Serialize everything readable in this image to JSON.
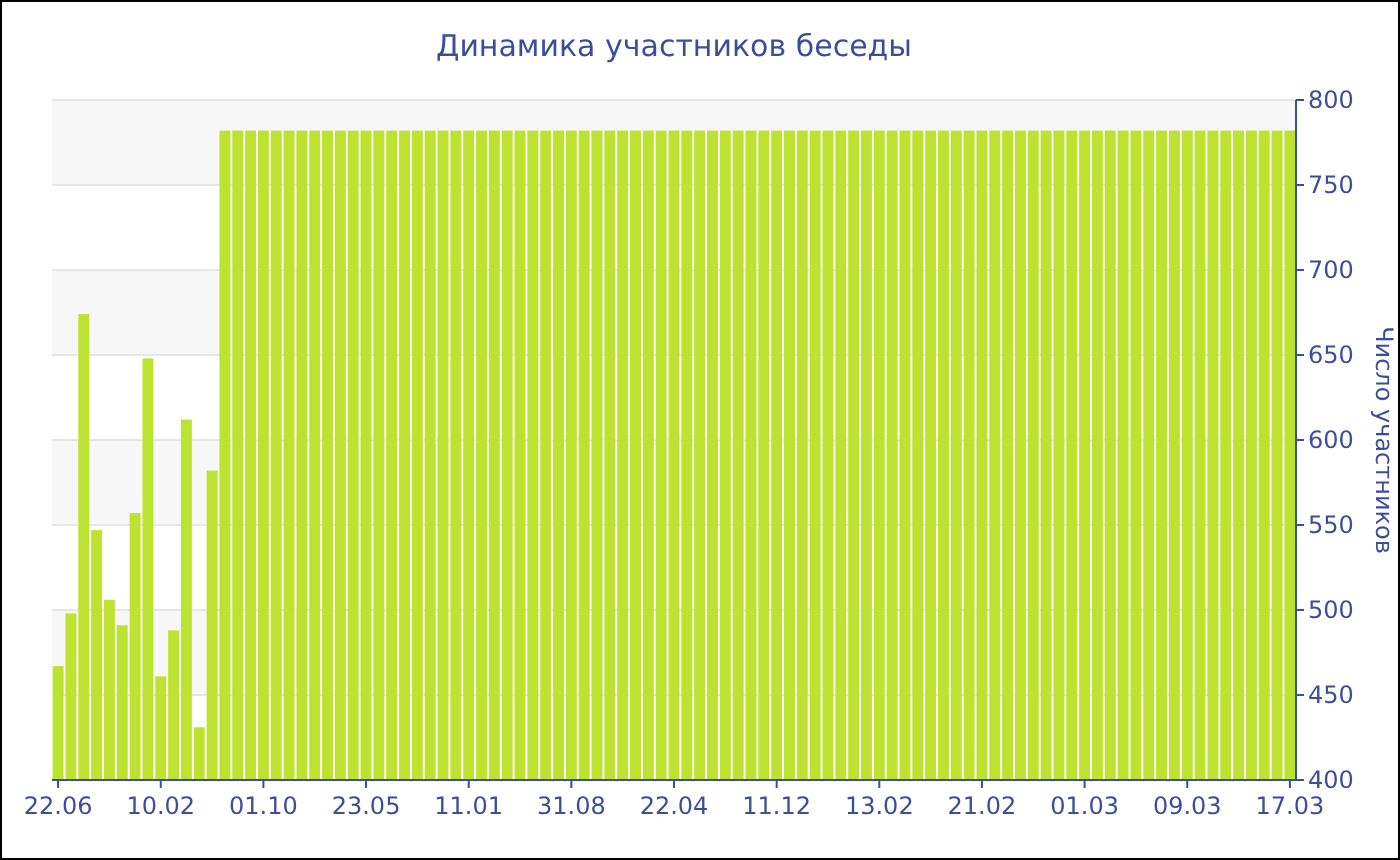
{
  "chart_data": {
    "type": "bar",
    "title": "Динамика участников беседы",
    "ylabel": "Число участников",
    "categories": [
      "22.06",
      null,
      null,
      null,
      null,
      null,
      null,
      null,
      "10.02",
      null,
      null,
      null,
      null,
      null,
      null,
      null,
      "01.10",
      null,
      null,
      null,
      null,
      null,
      null,
      null,
      "23.05",
      null,
      null,
      null,
      null,
      null,
      null,
      null,
      "11.01",
      null,
      null,
      null,
      null,
      null,
      null,
      null,
      "31.08",
      null,
      null,
      null,
      null,
      null,
      null,
      null,
      "22.04",
      null,
      null,
      null,
      null,
      null,
      null,
      null,
      "11.12",
      null,
      null,
      null,
      null,
      null,
      null,
      null,
      "13.02",
      null,
      null,
      null,
      null,
      null,
      null,
      null,
      "21.02",
      null,
      null,
      null,
      null,
      null,
      null,
      null,
      "01.03",
      null,
      null,
      null,
      null,
      null,
      null,
      null,
      "09.03",
      null,
      null,
      null,
      null,
      null,
      null,
      null,
      "17.03"
    ],
    "values": [
      467,
      498,
      674,
      547,
      506,
      491,
      557,
      648,
      461,
      488,
      612,
      431,
      582,
      782,
      782,
      782,
      782,
      782,
      782,
      782,
      782,
      782,
      782,
      782,
      782,
      782,
      782,
      782,
      782,
      782,
      782,
      782,
      782,
      782,
      782,
      782,
      782,
      782,
      782,
      782,
      782,
      782,
      782,
      782,
      782,
      782,
      782,
      782,
      782,
      782,
      782,
      782,
      782,
      782,
      782,
      782,
      782,
      782,
      782,
      782,
      782,
      782,
      782,
      782,
      782,
      782,
      782,
      782,
      782,
      782,
      782,
      782,
      782,
      782,
      782,
      782,
      782,
      782,
      782,
      782,
      782,
      782,
      782,
      782,
      782,
      782,
      782,
      782,
      782,
      782,
      782,
      782,
      782,
      782,
      782,
      782,
      782
    ],
    "color": "#bde22f",
    "ylim": [
      400,
      800
    ],
    "yticks": [
      400,
      450,
      500,
      550,
      600,
      650,
      700,
      750,
      800
    ],
    "grid": "y"
  }
}
